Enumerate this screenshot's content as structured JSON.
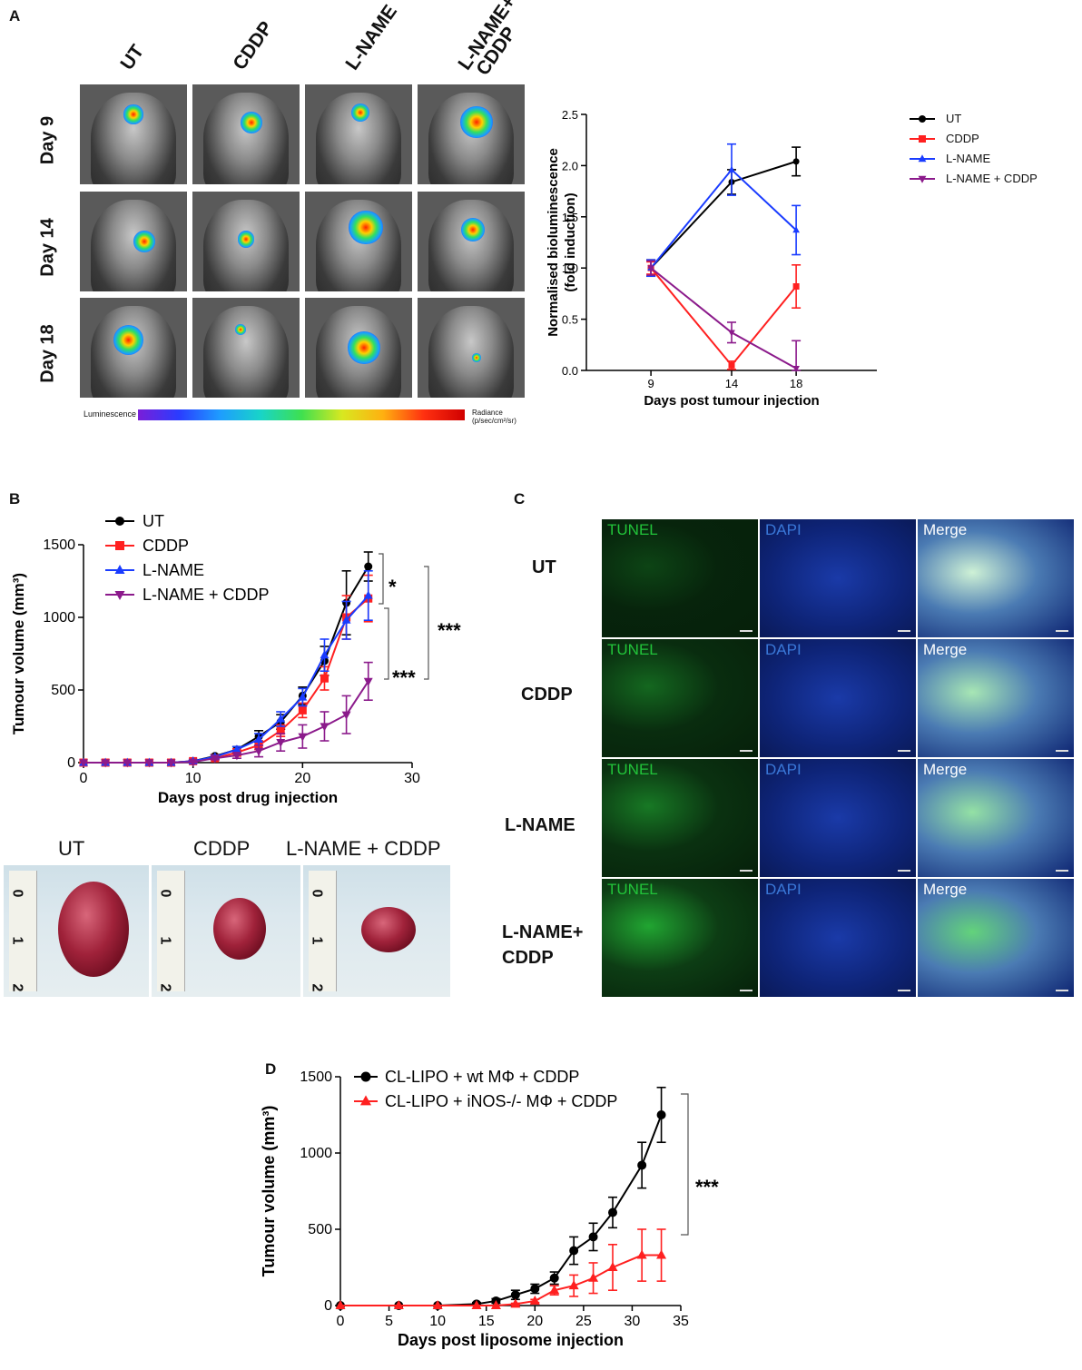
{
  "panels": {
    "A": "A",
    "B": "B",
    "C": "C",
    "D": "D"
  },
  "panelA": {
    "columns": [
      "UT",
      "CDDP",
      "L-NAME",
      "L-NAME+\nCDDP"
    ],
    "rows": [
      "Day 9",
      "Day 14",
      "Day 18"
    ],
    "scale_left": "Luminescence",
    "scale_right": "Radiance\n(p/sec/cm²/sr)"
  },
  "panelC": {
    "rows": [
      "UT",
      "CDDP",
      "L-NAME",
      "L-NAME+\nCDDP"
    ],
    "channels": [
      "TUNEL",
      "DAPI",
      "Merge"
    ],
    "colors": {
      "TUNEL": "#22c43a",
      "DAPI": "#3a78d8",
      "Merge": "#ffffff"
    }
  },
  "panelB_photos": {
    "labels": [
      "UT",
      "CDDP",
      "L-NAME + CDDP"
    ],
    "ruler_marks": [
      "0",
      "1",
      "2"
    ]
  },
  "chart_data": [
    {
      "id": "A",
      "type": "line",
      "xlabel": "Days post tumour injection",
      "ylabel": "Normalised bioluminescence\n(fold induction)",
      "x": [
        9,
        14,
        18
      ],
      "xlim": [
        9,
        18
      ],
      "ylim": [
        0,
        2.5
      ],
      "xticks": [
        9,
        14,
        18
      ],
      "yticks": [
        "0.0",
        "0.5",
        "1.0",
        "1.5",
        "2.0",
        "2.5"
      ],
      "legend": "top-right",
      "series": [
        {
          "name": "UT",
          "color": "#000000",
          "marker": "circle",
          "values": [
            1.0,
            1.84,
            2.04
          ],
          "err": [
            0.08,
            0.12,
            0.14
          ]
        },
        {
          "name": "CDDP",
          "color": "#ff2020",
          "marker": "square",
          "values": [
            1.0,
            0.05,
            0.82
          ],
          "err": [
            0.06,
            0.04,
            0.21
          ]
        },
        {
          "name": "L-NAME",
          "color": "#1a3cff",
          "marker": "triangle-up",
          "values": [
            1.0,
            1.96,
            1.37
          ],
          "err": [
            0.08,
            0.25,
            0.24
          ]
        },
        {
          "name": "L-NAME + CDDP",
          "color": "#8b1a8b",
          "marker": "triangle-down",
          "values": [
            1.0,
            0.37,
            0.02
          ],
          "err": [
            0.07,
            0.1,
            0.27
          ]
        }
      ]
    },
    {
      "id": "B",
      "type": "line",
      "xlabel": "Days post drug injection",
      "ylabel": "Tumour volume (mm³)",
      "x": [
        0,
        2,
        4,
        6,
        8,
        10,
        12,
        14,
        16,
        18,
        20,
        22,
        24,
        26
      ],
      "xlim": [
        0,
        30
      ],
      "ylim": [
        0,
        1500
      ],
      "xticks": [
        0,
        10,
        20,
        30
      ],
      "yticks": [
        0,
        500,
        1000,
        1500
      ],
      "legend": "top-left",
      "annotations": [
        "*",
        "***",
        "***"
      ],
      "series": [
        {
          "name": "UT",
          "color": "#000000",
          "marker": "circle",
          "values": [
            0,
            0,
            0,
            0,
            0,
            10,
            45,
            90,
            180,
            280,
            460,
            700,
            1100,
            1350
          ],
          "err": [
            0,
            0,
            0,
            0,
            0,
            5,
            10,
            20,
            40,
            50,
            60,
            100,
            220,
            100
          ]
        },
        {
          "name": "CDDP",
          "color": "#ff2020",
          "marker": "square",
          "values": [
            0,
            0,
            0,
            0,
            0,
            10,
            30,
            70,
            120,
            220,
            360,
            580,
            1000,
            1130
          ],
          "err": [
            0,
            0,
            0,
            0,
            0,
            5,
            10,
            25,
            30,
            40,
            50,
            80,
            150,
            160
          ]
        },
        {
          "name": "L-NAME",
          "color": "#1a3cff",
          "marker": "triangle-up",
          "values": [
            0,
            0,
            0,
            0,
            0,
            10,
            40,
            90,
            160,
            300,
            450,
            740,
            980,
            1150
          ],
          "err": [
            0,
            0,
            0,
            0,
            0,
            5,
            10,
            20,
            40,
            50,
            60,
            110,
            130,
            170
          ]
        },
        {
          "name": "L-NAME + CDDP",
          "color": "#8b1a8b",
          "marker": "triangle-down",
          "values": [
            0,
            0,
            0,
            0,
            0,
            5,
            30,
            50,
            80,
            140,
            180,
            250,
            330,
            560
          ],
          "err": [
            0,
            0,
            0,
            0,
            0,
            5,
            10,
            20,
            40,
            60,
            80,
            100,
            130,
            130
          ]
        }
      ]
    },
    {
      "id": "D",
      "type": "line",
      "xlabel": "Days post liposome injection",
      "ylabel": "Tumour volume (mm³)",
      "xlim": [
        0,
        35
      ],
      "ylim": [
        0,
        1500
      ],
      "xticks": [
        0,
        5,
        10,
        15,
        20,
        25,
        30,
        35
      ],
      "yticks": [
        0,
        500,
        1000,
        1500
      ],
      "legend": "top-left",
      "annotations": [
        "***"
      ],
      "series": [
        {
          "name": "CL-LIPO + wt MΦ + CDDP",
          "color": "#000000",
          "marker": "circle",
          "x": [
            0,
            6,
            10,
            14,
            16,
            18,
            20,
            22,
            24,
            26,
            28,
            31,
            33
          ],
          "values": [
            0,
            0,
            0,
            10,
            30,
            70,
            110,
            180,
            360,
            450,
            610,
            920,
            1250
          ],
          "err": [
            0,
            0,
            0,
            10,
            15,
            30,
            30,
            40,
            90,
            90,
            100,
            150,
            180
          ]
        },
        {
          "name": "CL-LIPO + iNOS-/- MΦ + CDDP",
          "color": "#ff2020",
          "marker": "triangle-up",
          "x": [
            0,
            6,
            10,
            14,
            16,
            18,
            20,
            22,
            24,
            26,
            28,
            31,
            33
          ],
          "values": [
            0,
            0,
            0,
            0,
            0,
            10,
            30,
            100,
            130,
            180,
            250,
            330,
            330
          ],
          "err": [
            0,
            0,
            0,
            0,
            0,
            5,
            10,
            30,
            70,
            100,
            150,
            170,
            170
          ]
        }
      ]
    }
  ]
}
